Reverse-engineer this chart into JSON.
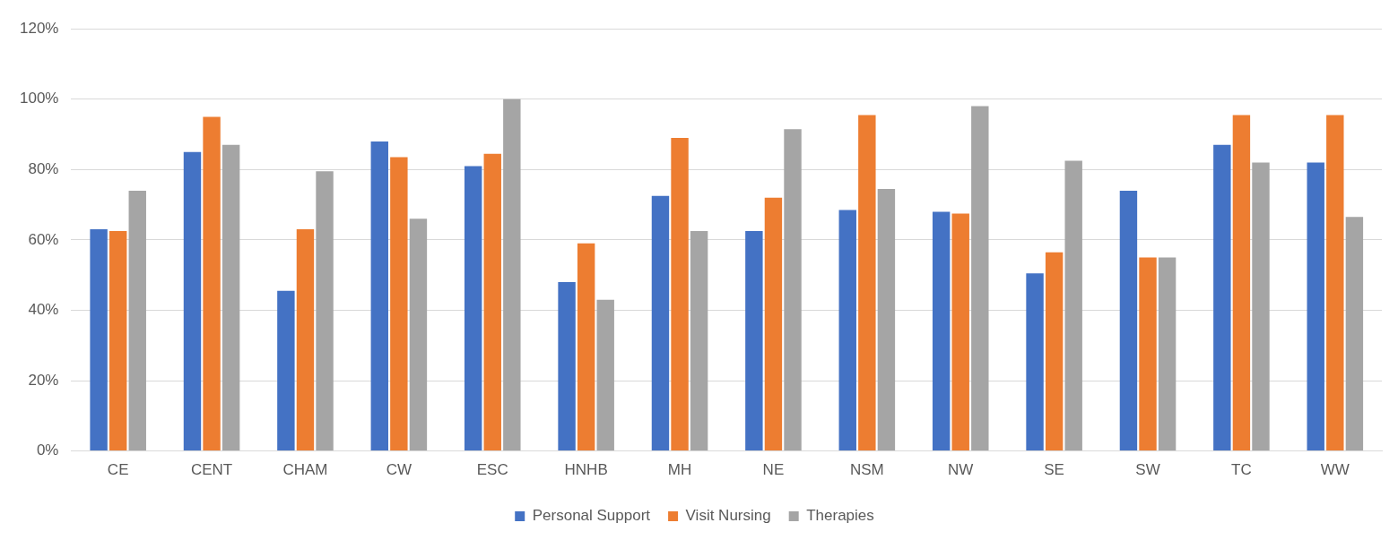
{
  "chart_data": {
    "type": "bar",
    "categories": [
      "CE",
      "CENT",
      "CHAM",
      "CW",
      "ESC",
      "HNHB",
      "MH",
      "NE",
      "NSM",
      "NW",
      "SE",
      "SW",
      "TC",
      "WW"
    ],
    "series": [
      {
        "name": "Personal Support",
        "color": "#4472c4",
        "values": [
          63,
          85,
          45.5,
          88,
          81,
          48,
          72.5,
          62.5,
          68.5,
          68,
          50.5,
          74,
          87,
          82
        ]
      },
      {
        "name": "Visit Nursing",
        "color": "#ed7d31",
        "values": [
          62.5,
          95,
          63,
          83.5,
          84.5,
          59,
          89,
          72,
          95.5,
          67.5,
          56.5,
          55,
          95.5,
          95.5
        ]
      },
      {
        "name": "Therapies",
        "color": "#a5a5a5",
        "values": [
          74,
          87,
          79.5,
          66,
          100,
          43,
          62.5,
          91.5,
          74.5,
          98,
          82.5,
          55,
          82,
          66.5
        ]
      }
    ],
    "ylim": [
      0,
      120
    ],
    "yticks": [
      {
        "value": 0,
        "label": "0%"
      },
      {
        "value": 20,
        "label": "20%"
      },
      {
        "value": 40,
        "label": "40%"
      },
      {
        "value": 60,
        "label": "60%"
      },
      {
        "value": 80,
        "label": "80%"
      },
      {
        "value": 100,
        "label": "100%"
      },
      {
        "value": 120,
        "label": "120%"
      }
    ],
    "grid": "y",
    "legend": "bottom"
  }
}
